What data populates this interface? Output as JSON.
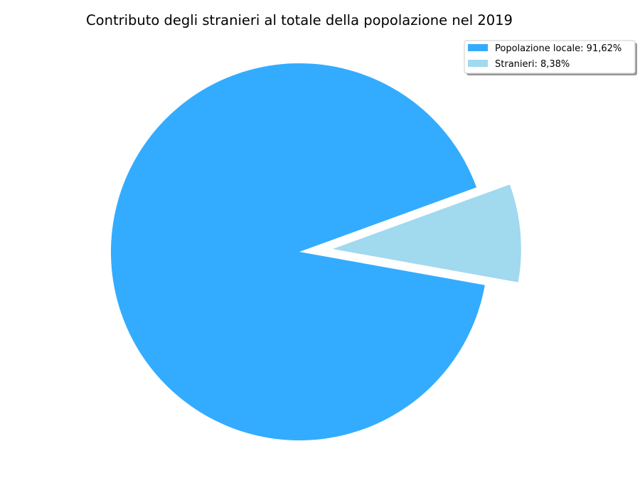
{
  "chart_data": {
    "type": "pie",
    "title": "Contributo degli stranieri al totale della popolazione nel 2019",
    "slices": [
      {
        "name": "Popolazione locale",
        "value": 91.62,
        "legend_label": "Popolazione locale: 91,62%",
        "color": "#33acff",
        "exploded": false
      },
      {
        "name": "Stranieri",
        "value": 8.38,
        "legend_label": "Stranieri: 8,38%",
        "color": "#a1d9ef",
        "exploded": true
      }
    ],
    "start_angle_deg": 20,
    "direction": "counterclockwise",
    "legend_position": "top-right"
  }
}
